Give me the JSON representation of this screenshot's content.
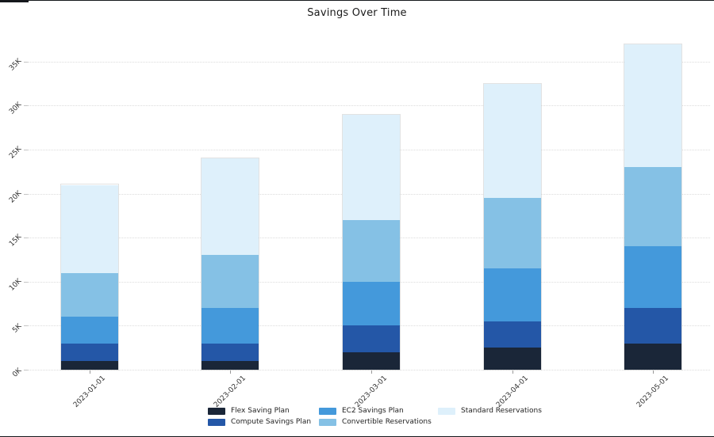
{
  "title": "Savings Over Time",
  "chart_data": {
    "type": "bar",
    "stacked": true,
    "title": "Savings Over Time",
    "xlabel": "",
    "ylabel": "",
    "categories": [
      "2023-01-01",
      "2023-02-01",
      "2023-03-01",
      "2023-04-01",
      "2023-05-01"
    ],
    "series": [
      {
        "name": "Flex Saving Plan",
        "color": "#1A2638",
        "values": [
          1000,
          1000,
          2000,
          2500,
          3000
        ]
      },
      {
        "name": "Compute Savings Plan",
        "color": "#2457A7",
        "values": [
          2000,
          2000,
          3000,
          3000,
          4000
        ]
      },
      {
        "name": "EC2 Savings Plan",
        "color": "#4499DB",
        "values": [
          3000,
          4000,
          5000,
          6000,
          7000
        ]
      },
      {
        "name": "Convertible Reservations",
        "color": "#85C1E5",
        "values": [
          5000,
          6000,
          7000,
          8000,
          9000
        ]
      },
      {
        "name": "Standard Reservations",
        "color": "#DEF0FB",
        "values": [
          10000,
          11000,
          12000,
          13000,
          14000
        ]
      }
    ],
    "stack_totals": [
      21000,
      24000,
      29000,
      32500,
      37000
    ],
    "yticks": [
      "0K",
      "5K",
      "10K",
      "15K",
      "20K",
      "25K",
      "30K",
      "35K"
    ],
    "ytick_values": [
      0,
      5000,
      10000,
      15000,
      20000,
      25000,
      30000,
      35000
    ],
    "ylim": [
      0,
      37500
    ],
    "grid": "horizontal-dotted",
    "legend_position": "bottom",
    "legend_columns": [
      [
        "Flex Saving Plan",
        "Compute Savings Plan"
      ],
      [
        "EC2 Savings Plan",
        "Convertible Reservations"
      ],
      [
        "Standard Reservations"
      ]
    ]
  }
}
